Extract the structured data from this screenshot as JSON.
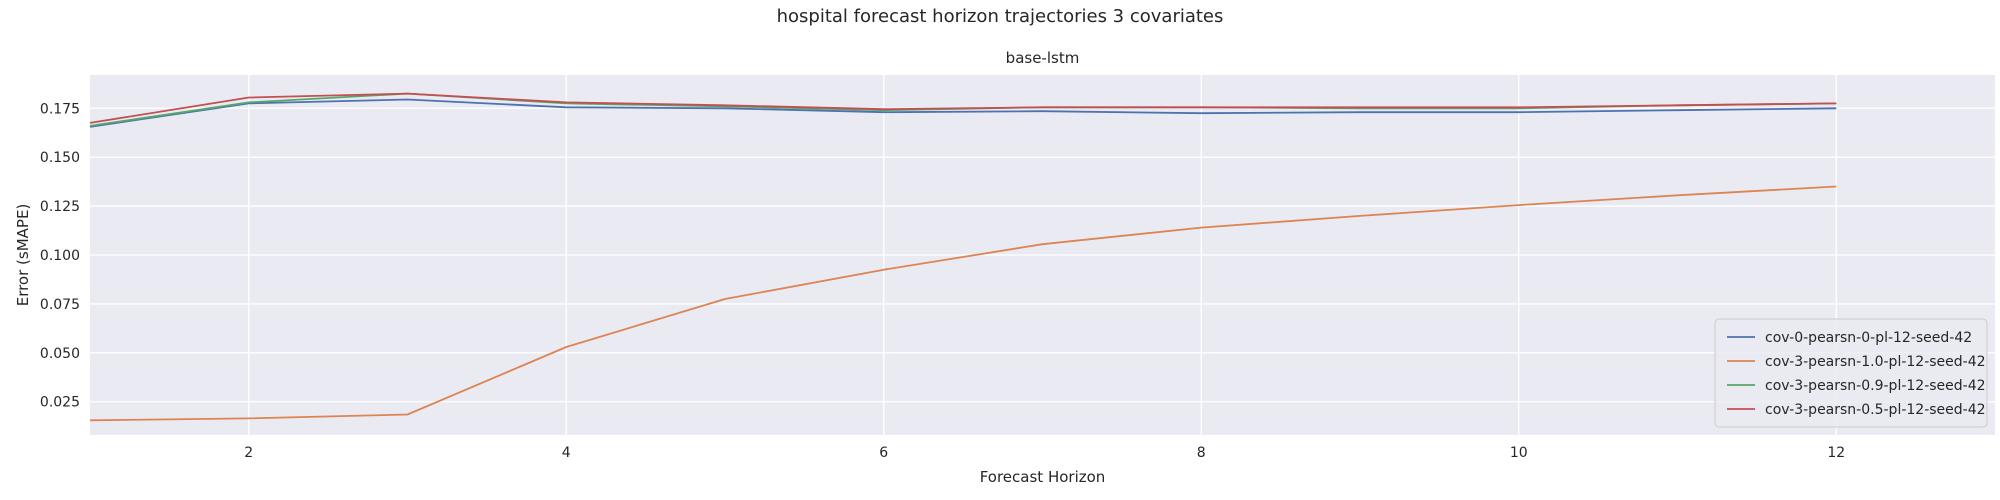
{
  "figure": {
    "suptitle": "hospital forecast horizon trajectories 3 covariates"
  },
  "chart_data": {
    "type": "line",
    "title": "base-lstm",
    "xlabel": "Forecast Horizon",
    "ylabel": "Error (sMAPE)",
    "xlim": [
      1,
      13
    ],
    "ylim": [
      0.008,
      0.192
    ],
    "xticks": [
      2,
      4,
      6,
      8,
      10,
      12
    ],
    "yticks": [
      0.025,
      0.05,
      0.075,
      0.1,
      0.125,
      0.15,
      0.175
    ],
    "ytick_labels": [
      "0.025",
      "0.050",
      "0.075",
      "0.100",
      "0.125",
      "0.150",
      "0.175"
    ],
    "grid": true,
    "background": "#eaeaf2",
    "legend_position": "lower-right",
    "x": [
      1,
      2,
      3,
      4,
      5,
      6,
      7,
      8,
      9,
      10,
      11,
      12
    ],
    "series": [
      {
        "name": "cov-0-pearsn-0-pl-12-seed-42",
        "color": "#4c72b0",
        "values": [
          0.1655,
          0.1775,
          0.1795,
          0.1755,
          0.175,
          0.173,
          0.1735,
          0.1725,
          0.173,
          0.173,
          0.174,
          0.175
        ]
      },
      {
        "name": "cov-3-pearsn-1.0-pl-12-seed-42",
        "color": "#dd8452",
        "values": [
          0.0155,
          0.0165,
          0.0185,
          0.053,
          0.0775,
          0.0925,
          0.1055,
          0.114,
          0.12,
          0.1255,
          0.1305,
          0.135
        ]
      },
      {
        "name": "cov-3-pearsn-0.9-pl-12-seed-42",
        "color": "#55a868",
        "values": [
          0.166,
          0.178,
          0.1825,
          0.1775,
          0.176,
          0.174,
          0.1755,
          0.1755,
          0.175,
          0.175,
          0.1765,
          0.1775
        ]
      },
      {
        "name": "cov-3-pearsn-0.5-pl-12-seed-42",
        "color": "#c44e52",
        "values": [
          0.1675,
          0.1805,
          0.1825,
          0.178,
          0.1765,
          0.1745,
          0.1755,
          0.1755,
          0.1755,
          0.1755,
          0.1765,
          0.1775
        ]
      }
    ]
  }
}
